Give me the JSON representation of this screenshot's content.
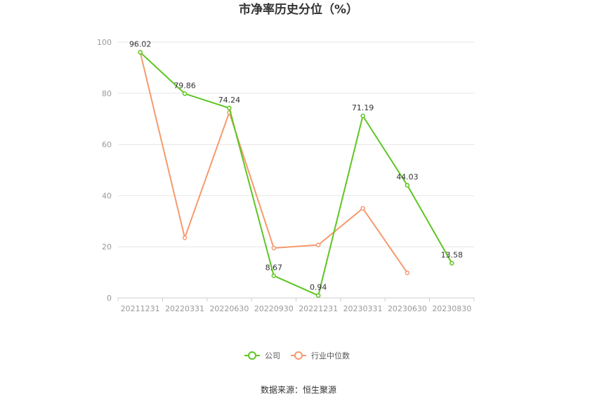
{
  "chart_data": {
    "type": "line",
    "title": "市净率历史分位（%）",
    "categories": [
      "20211231",
      "20220331",
      "20220630",
      "20220930",
      "20221231",
      "20230331",
      "20230630",
      "20230830"
    ],
    "series": [
      {
        "name": "公司",
        "color": "#5ec522",
        "values": [
          96.02,
          79.86,
          74.24,
          8.67,
          0.94,
          71.19,
          44.03,
          13.58
        ],
        "labels": [
          "96.02",
          "79.86",
          "74.24",
          "8.67",
          "0.94",
          "71.19",
          "44.03",
          "13.58"
        ]
      },
      {
        "name": "行业中位数",
        "color": "#f59a6d",
        "values": [
          96,
          23.5,
          72.5,
          19.5,
          20.7,
          35,
          9.8,
          null
        ]
      }
    ],
    "ylim": [
      0,
      100
    ],
    "yticks": [
      "0",
      "20",
      "40",
      "60",
      "80",
      "100"
    ],
    "grid": true,
    "legend_position": "bottom"
  },
  "source_text": "数据来源：恒生聚源"
}
